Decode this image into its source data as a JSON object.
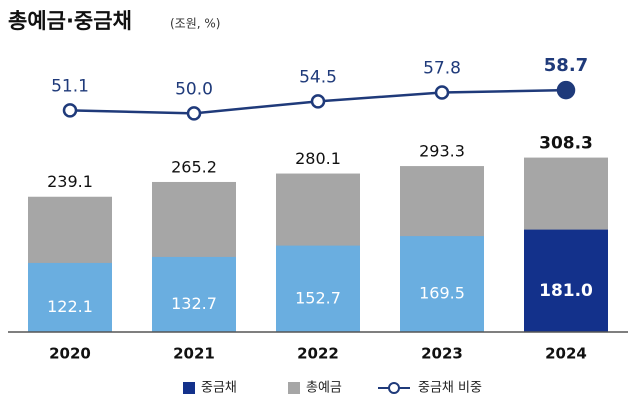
{
  "chart_data": {
    "type": "bar",
    "title": "총예금·중금채",
    "subtitle": "(조원, %)",
    "categories": [
      "2020",
      "2021",
      "2022",
      "2023",
      "2024"
    ],
    "series": [
      {
        "name": "중금채",
        "color": "#13318b",
        "colors": [
          "#6aaee0",
          "#6aaee0",
          "#6aaee0",
          "#6aaee0",
          "#13318b"
        ],
        "values": [
          122.1,
          132.7,
          152.7,
          169.5,
          181
        ],
        "value_labels": [
          "122.1",
          "132.7",
          "152.7",
          "169.5",
          "181.0"
        ]
      },
      {
        "name": "총예금",
        "color": "#a6a6a6",
        "colors": [
          "#a6a6a6",
          "#a6a6a6",
          "#a6a6a6",
          "#a6a6a6",
          "#a6a6a6"
        ],
        "values": [
          239.1,
          265.2,
          280.1,
          293.3,
          308.3
        ],
        "value_labels": [
          "239.1",
          "265.2",
          "280.1",
          "293.3",
          "308.3"
        ]
      },
      {
        "name": "중금채 비중",
        "type": "line",
        "axis": "y2",
        "color": "#1f3a7a",
        "values": [
          51.1,
          50,
          54.5,
          57.8,
          58.7
        ],
        "value_labels": [
          "51.1",
          "50.0",
          "54.5",
          "57.8",
          "58.7"
        ]
      }
    ],
    "ylim": [
      0,
      350
    ],
    "y2lim": [
      40,
      70
    ],
    "legend": "bottom"
  }
}
